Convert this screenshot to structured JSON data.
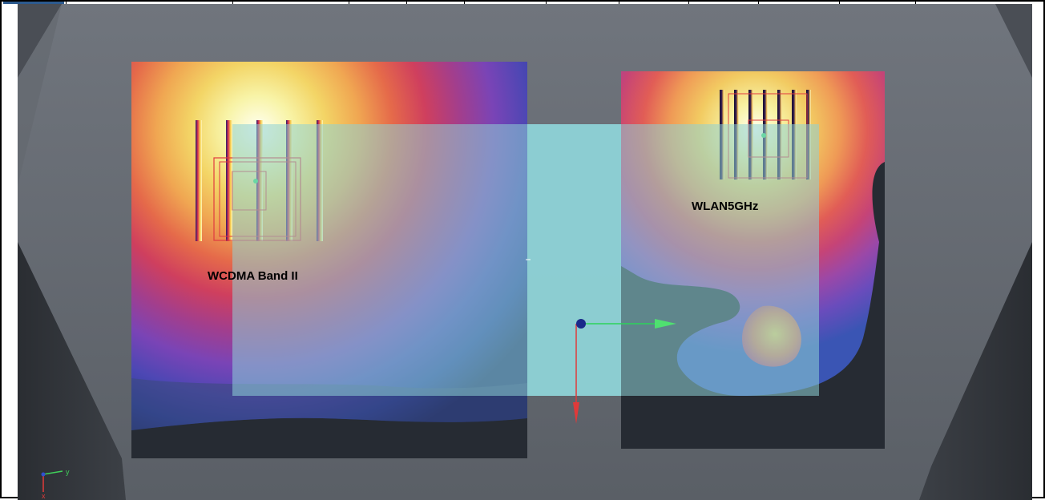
{
  "scan_labels": {
    "wcdma": "WCDMA Band II",
    "wlan": "WLAN5GHz"
  },
  "axis_triad": {
    "y": "y",
    "x": "x"
  },
  "colors": {
    "background_light": "#6c7179",
    "background_dark": "#2d3137",
    "phantom_overlay": "#8ed2d6",
    "hot": "#ffffd0",
    "warm": "#f4d266",
    "mid": "#e0504e",
    "cool": "#8b4cc0",
    "cold": "#1d3a8e"
  }
}
